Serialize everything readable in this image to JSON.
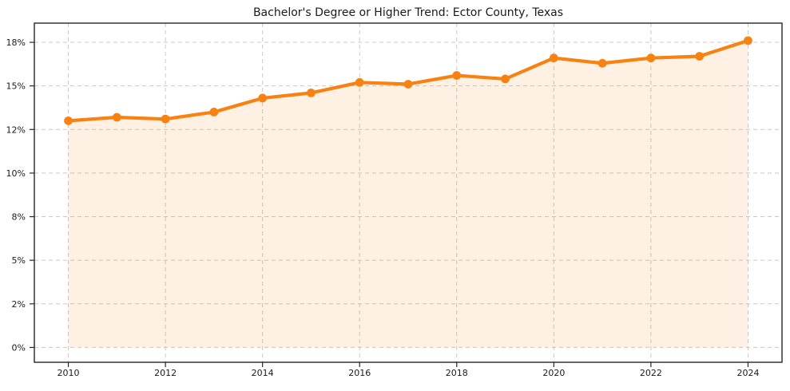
{
  "chart_data": {
    "type": "line",
    "title": "Bachelor's Degree or Higher Trend: Ector County, Texas",
    "unit": "%",
    "x": [
      2010,
      2011,
      2012,
      2013,
      2014,
      2015,
      2016,
      2017,
      2018,
      2019,
      2020,
      2021,
      2022,
      2023,
      2024
    ],
    "values": [
      13.0,
      13.2,
      13.1,
      13.5,
      14.3,
      14.6,
      15.2,
      15.1,
      15.6,
      15.4,
      16.6,
      16.3,
      16.6,
      16.7,
      17.6
    ],
    "x_ticks": [
      {
        "label": "2010",
        "value": 2010
      },
      {
        "label": "2012",
        "value": 2012
      },
      {
        "label": "2014",
        "value": 2014
      },
      {
        "label": "2016",
        "value": 2016
      },
      {
        "label": "2018",
        "value": 2018
      },
      {
        "label": "2020",
        "value": 2020
      },
      {
        "label": "2022",
        "value": 2022
      },
      {
        "label": "2024",
        "value": 2024
      }
    ],
    "y_ticks": [
      {
        "label": "0%",
        "value": 0
      },
      {
        "label": "2%",
        "value": 2.5
      },
      {
        "label": "5%",
        "value": 5
      },
      {
        "label": "8%",
        "value": 7.5
      },
      {
        "label": "10%",
        "value": 10
      },
      {
        "label": "12%",
        "value": 12.5
      },
      {
        "label": "15%",
        "value": 15
      },
      {
        "label": "18%",
        "value": 17.5
      }
    ],
    "xlim": [
      2009.3,
      2024.7
    ],
    "ylim": [
      -0.85,
      18.6
    ],
    "grid": true,
    "legend_position": "none",
    "area_fill": true,
    "area_fill_baseline": 0,
    "colors": {
      "line": "#F78212",
      "marker": "#F78212",
      "fill": "#F78212",
      "fill_opacity": 0.12,
      "grid": "#C9C9C9",
      "axis": "#262626",
      "text": "#1A1A1A",
      "background": "#FFFFFF"
    }
  }
}
